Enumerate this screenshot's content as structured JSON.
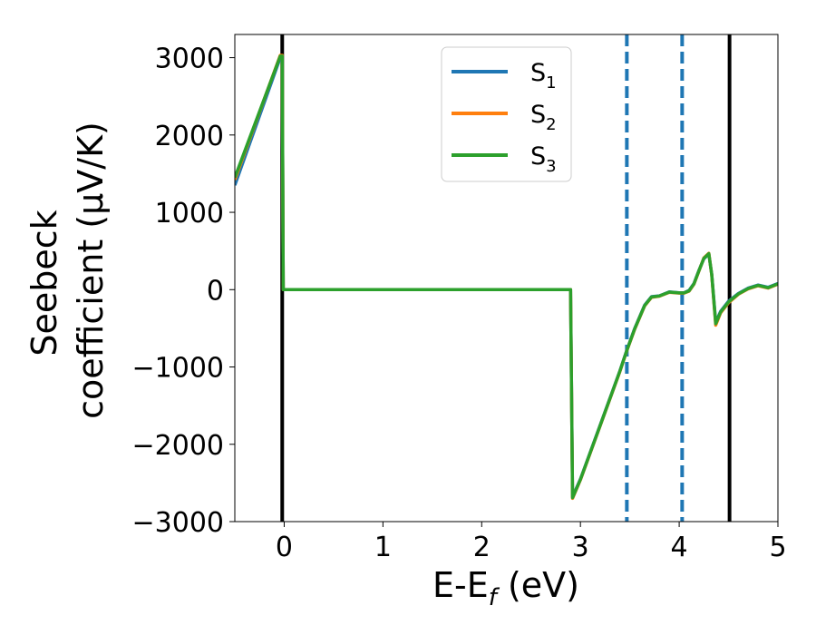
{
  "chart_data": {
    "type": "line",
    "xlabel": "E-E",
    "xlabel_sub": "f",
    "xlabel_unit": " (eV)",
    "ylabel_line1": "Seebeck",
    "ylabel_line2": "coefficient  (μV/K)",
    "xlim": [
      -0.5,
      5.0
    ],
    "ylim": [
      -3000,
      3300
    ],
    "x_ticks": [
      0,
      1,
      2,
      3,
      4,
      5
    ],
    "x_tick_labels": [
      "0",
      "1",
      "2",
      "3",
      "4",
      "5"
    ],
    "y_ticks": [
      -3000,
      -2000,
      -1000,
      0,
      1000,
      2000,
      3000
    ],
    "y_tick_labels": [
      "−3000",
      "−2000",
      "−1000",
      "0",
      "1000",
      "2000",
      "3000"
    ],
    "grid": false,
    "legend_position": "top-center",
    "vertical_lines": [
      {
        "x": -0.02,
        "style": "solid",
        "color": "#000000"
      },
      {
        "x": 4.51,
        "style": "solid",
        "color": "#000000"
      },
      {
        "x": 3.47,
        "style": "dashed",
        "color": "#1f77b4"
      },
      {
        "x": 4.03,
        "style": "dashed",
        "color": "#1f77b4"
      }
    ],
    "series": [
      {
        "name": "S",
        "name_sub": "1",
        "color": "#1f77b4",
        "x": [
          -0.5,
          -0.04,
          -0.02,
          -0.01,
          2.9,
          2.92,
          3.0,
          3.2,
          3.4,
          3.47,
          3.55,
          3.65,
          3.72,
          3.8,
          3.9,
          4.0,
          4.05,
          4.1,
          4.15,
          4.2,
          4.25,
          4.3,
          4.33,
          4.37,
          4.42,
          4.5,
          4.6,
          4.7,
          4.8,
          4.9,
          5.0
        ],
        "y": [
          1350,
          3000,
          3000,
          0,
          0,
          -2680,
          -2450,
          -1750,
          -1050,
          -780,
          -500,
          -200,
          -90,
          -80,
          -30,
          -40,
          -40,
          -10,
          80,
          250,
          400,
          460,
          200,
          -420,
          -280,
          -150,
          -50,
          20,
          60,
          30,
          80
        ]
      },
      {
        "name": "S",
        "name_sub": "2",
        "color": "#ff7f0e",
        "x": [
          -0.5,
          -0.04,
          -0.02,
          -0.01,
          2.9,
          2.92,
          3.0,
          3.2,
          3.4,
          3.47,
          3.55,
          3.65,
          3.72,
          3.8,
          3.9,
          4.0,
          4.05,
          4.1,
          4.15,
          4.2,
          4.25,
          4.3,
          4.33,
          4.37,
          4.42,
          4.5,
          4.6,
          4.7,
          4.8,
          4.9,
          5.0
        ],
        "y": [
          1420,
          3030,
          3030,
          0,
          0,
          -2700,
          -2460,
          -1760,
          -1060,
          -790,
          -510,
          -210,
          -100,
          -85,
          -35,
          -45,
          -45,
          -20,
          70,
          240,
          410,
          470,
          190,
          -460,
          -300,
          -170,
          -60,
          10,
          50,
          20,
          70
        ]
      },
      {
        "name": "S",
        "name_sub": "3",
        "color": "#2ca02c",
        "x": [
          -0.5,
          -0.04,
          -0.02,
          -0.01,
          2.9,
          2.92,
          3.0,
          3.2,
          3.4,
          3.47,
          3.55,
          3.65,
          3.72,
          3.8,
          3.9,
          4.0,
          4.05,
          4.1,
          4.15,
          4.2,
          4.25,
          4.3,
          4.33,
          4.37,
          4.42,
          4.5,
          4.6,
          4.7,
          4.8,
          4.9,
          5.0
        ],
        "y": [
          1450,
          3020,
          3020,
          0,
          0,
          -2690,
          -2455,
          -1755,
          -1055,
          -785,
          -505,
          -205,
          -95,
          -82,
          -32,
          -42,
          -42,
          -15,
          75,
          245,
          405,
          465,
          195,
          -440,
          -290,
          -160,
          -55,
          15,
          55,
          25,
          75
        ]
      }
    ]
  }
}
